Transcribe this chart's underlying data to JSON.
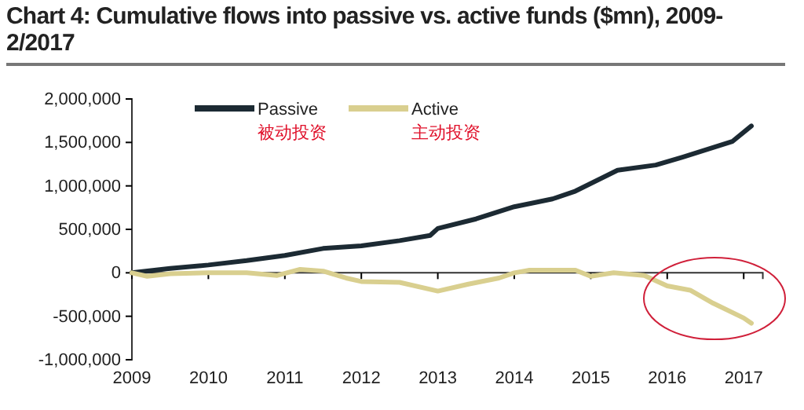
{
  "chart_data": {
    "type": "line",
    "title": "Chart 4: Cumulative flows into passive vs. active funds ($mn), 2009-2/2017",
    "xlim": [
      2009,
      2017.25
    ],
    "xticks": [
      2009,
      2010,
      2011,
      2012,
      2013,
      2014,
      2015,
      2016,
      2017
    ],
    "ylim": [
      -1000000,
      2000000
    ],
    "yticks": [
      {
        "value": 2000000,
        "label": "2,000,000"
      },
      {
        "value": 1500000,
        "label": "1,500,000"
      },
      {
        "value": 1000000,
        "label": "1,000,000"
      },
      {
        "value": 500000,
        "label": "500,000"
      },
      0,
      {
        "value": -500000,
        "label": "-500,000"
      },
      {
        "value": -1000000,
        "label": "-1,000,000"
      }
    ],
    "legend": "top left",
    "grid": false,
    "annotations": [
      "被动投资",
      "主动投资"
    ],
    "series": [
      {
        "name": "Passive",
        "color": "#1c2a33",
        "x": [
          2009,
          2009.5,
          2010,
          2010.5,
          2011,
          2011.5,
          2012,
          2012.5,
          2012.9,
          2013,
          2013.5,
          2014,
          2014.5,
          2014.8,
          2015.35,
          2015.85,
          2016.2,
          2016.85,
          2017.1
        ],
        "values": [
          0,
          50000,
          90000,
          140000,
          200000,
          280000,
          310000,
          370000,
          430000,
          510000,
          620000,
          760000,
          850000,
          940000,
          1180000,
          1240000,
          1330000,
          1510000,
          1690000
        ]
      },
      {
        "name": "Active",
        "color": "#d9cf8f",
        "x": [
          2009,
          2009.2,
          2009.5,
          2010,
          2010.5,
          2010.9,
          2011.2,
          2011.5,
          2011.8,
          2012,
          2012.5,
          2013,
          2013.4,
          2013.8,
          2014,
          2014.2,
          2014.8,
          2015,
          2015.3,
          2015.7,
          2016,
          2016.3,
          2016.6,
          2017,
          2017.1
        ],
        "values": [
          0,
          -40000,
          -10000,
          0,
          0,
          -30000,
          40000,
          20000,
          -60000,
          -100000,
          -110000,
          -210000,
          -130000,
          -60000,
          0,
          30000,
          30000,
          -40000,
          0,
          -30000,
          -150000,
          -200000,
          -350000,
          -520000,
          -580000
        ]
      }
    ]
  }
}
